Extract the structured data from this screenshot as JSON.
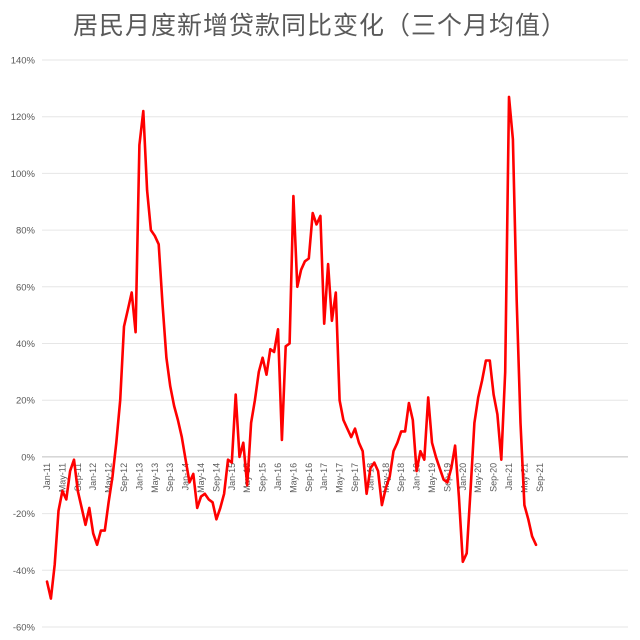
{
  "chart_data": {
    "type": "line",
    "title": "居民月度新增贷款同比变化（三个月均值）",
    "xlabel": "",
    "ylabel": "",
    "ylim": [
      -0.6,
      1.4
    ],
    "y_ticks": [
      "-60%",
      "-40%",
      "-20%",
      "0%",
      "20%",
      "40%",
      "60%",
      "80%",
      "100%",
      "120%",
      "140%"
    ],
    "x_ticks": [
      "Jan-11",
      "May-11",
      "Sep-11",
      "Jan-12",
      "May-12",
      "Sep-12",
      "Jan-13",
      "May-13",
      "Sep-13",
      "Jan-14",
      "May-14",
      "Sep-14",
      "Jan-15",
      "May-15",
      "Sep-15",
      "Jan-16",
      "May-16",
      "Sep-16",
      "Jan-17",
      "May-17",
      "Sep-17",
      "Jan-18",
      "May-18",
      "Sep-18",
      "Jan-19",
      "May-19",
      "Sep-19",
      "Jan-20",
      "May-20",
      "Sep-20",
      "Jan-21",
      "May-21",
      "Sep-21"
    ],
    "grid": "horizontal",
    "legend": "none",
    "line_color": "#FF0000",
    "start_month": "Jan-11",
    "series": [
      {
        "values": [
          -0.44,
          -0.5,
          -0.38,
          -0.19,
          -0.12,
          -0.15,
          -0.05,
          -0.01,
          -0.12,
          -0.18,
          -0.24,
          -0.18,
          -0.27,
          -0.31,
          -0.26,
          -0.26,
          -0.16,
          -0.07,
          0.05,
          0.2,
          0.46,
          0.52,
          0.58,
          0.44,
          1.1,
          1.22,
          0.94,
          0.8,
          0.78,
          0.75,
          0.54,
          0.35,
          0.25,
          0.18,
          0.13,
          0.07,
          -0.01,
          -0.09,
          -0.06,
          -0.18,
          -0.14,
          -0.13,
          -0.15,
          -0.16,
          -0.22,
          -0.18,
          -0.13,
          -0.01,
          -0.02,
          0.22,
          0.0,
          0.05,
          -0.1,
          0.12,
          0.2,
          0.3,
          0.35,
          0.29,
          0.38,
          0.37,
          0.45,
          0.06,
          0.39,
          0.4,
          0.92,
          0.6,
          0.66,
          0.69,
          0.7,
          0.86,
          0.82,
          0.85,
          0.47,
          0.68,
          0.48,
          0.58,
          0.2,
          0.13,
          0.1,
          0.07,
          0.1,
          0.05,
          0.02,
          -0.13,
          -0.04,
          -0.02,
          -0.05,
          -0.17,
          -0.11,
          -0.07,
          0.02,
          0.05,
          0.09,
          0.09,
          0.19,
          0.13,
          -0.05,
          0.02,
          -0.01,
          0.21,
          0.05,
          0.0,
          -0.04,
          -0.08,
          -0.09,
          -0.04,
          0.04,
          -0.14,
          -0.37,
          -0.34,
          -0.12,
          0.12,
          0.21,
          0.27,
          0.34,
          0.34,
          0.22,
          0.15,
          -0.01,
          0.3,
          1.27,
          1.12,
          0.55,
          0.12,
          -0.17,
          -0.22,
          -0.28,
          -0.31
        ]
      }
    ]
  }
}
